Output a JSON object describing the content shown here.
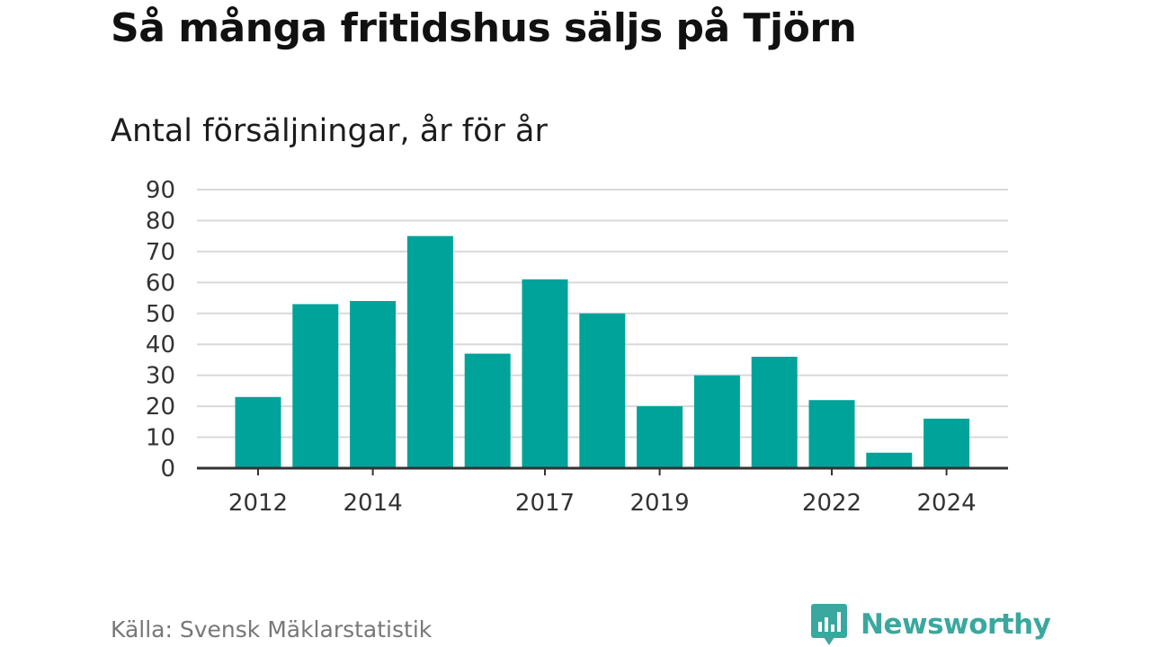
{
  "title": "Så många fritidshus säljs på Tjörn",
  "subtitle": "Antal försäljningar, år för år",
  "source": "Källa: Svensk Mäklarstatistik",
  "brand": {
    "name": "Newsworthy",
    "icon": "newsworthy-logo-icon",
    "color": "#3aa89e"
  },
  "colors": {
    "bar": "#00a39a",
    "grid": "#d9d9d9",
    "axis": "#333333"
  },
  "chart_data": {
    "type": "bar",
    "title": "Så många fritidshus säljs på Tjörn",
    "subtitle": "Antal försäljningar, år för år",
    "xlabel": "",
    "ylabel": "",
    "x": [
      2012,
      2013,
      2014,
      2015,
      2016,
      2017,
      2018,
      2019,
      2020,
      2021,
      2022,
      2023,
      2024
    ],
    "values": [
      23,
      53,
      54,
      75,
      37,
      61,
      50,
      20,
      30,
      36,
      22,
      5,
      16
    ],
    "ylim": [
      0,
      90
    ],
    "yticks": [
      0,
      10,
      20,
      30,
      40,
      50,
      60,
      70,
      80,
      90
    ],
    "xtick_labels": [
      "2012",
      "2014",
      "2017",
      "2019",
      "2022",
      "2024"
    ],
    "grid": "horizontal",
    "legend": "none"
  }
}
